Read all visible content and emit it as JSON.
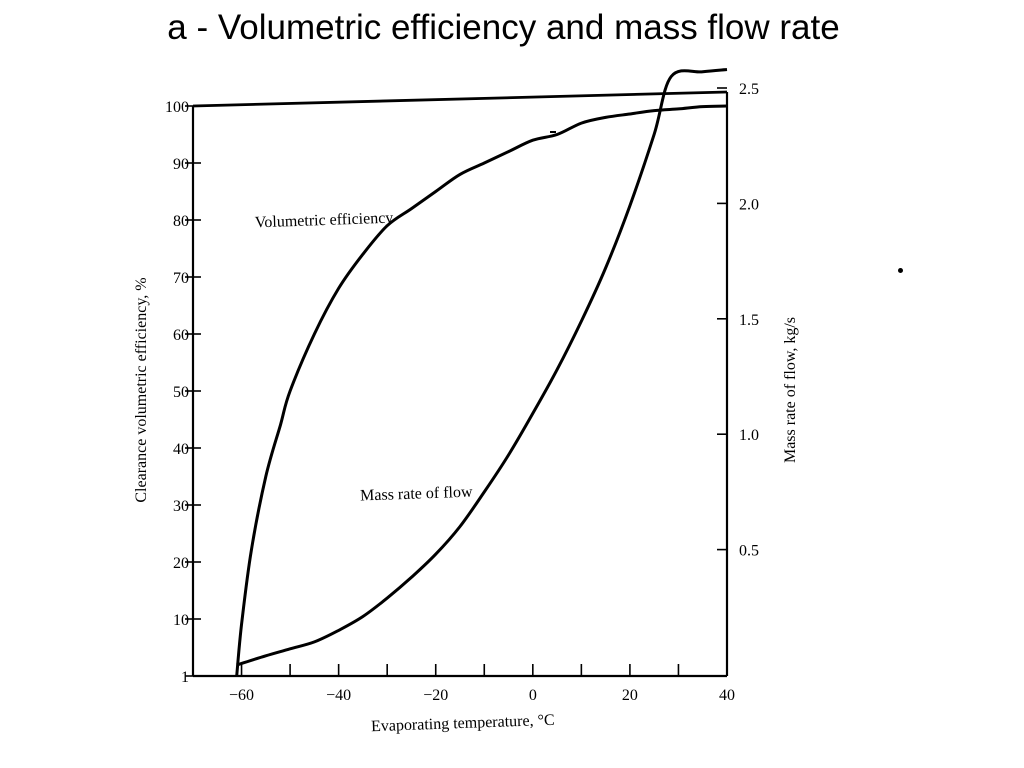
{
  "slide": {
    "title": "a - Volumetric efficiency and mass flow rate"
  },
  "chart_data": {
    "type": "line",
    "xlabel": "Evaporating temperature, °C",
    "ylabel": "Clearance volumetric efficiency, %",
    "y2label": "Mass rate of flow, kg/s",
    "xlim": [
      -70,
      40
    ],
    "ylim": [
      0,
      100
    ],
    "y2lim": [
      0,
      2.5
    ],
    "x_ticks": [
      -60,
      -40,
      -20,
      0,
      20,
      40
    ],
    "x_tick_labels": [
      "−60",
      "−40",
      "−20",
      "0",
      "20",
      "40"
    ],
    "y_ticks": [
      100,
      90,
      80,
      70,
      60,
      50,
      40,
      30,
      20,
      10,
      1
    ],
    "y_tick_labels": [
      "100",
      "90",
      "80",
      "70",
      "60",
      "50",
      "40",
      "30",
      "20",
      "10",
      "1"
    ],
    "y2_ticks": [
      2.5,
      2.0,
      1.5,
      1.0,
      0.5
    ],
    "y2_tick_labels": [
      "2.5",
      "2.0",
      "1.5",
      "1.0",
      "0.5"
    ],
    "grid": false,
    "series": [
      {
        "name": "Volumetric efficiency",
        "axis": "left",
        "x": [
          -61,
          -60,
          -58,
          -55,
          -52,
          -50,
          -45,
          -40,
          -35,
          -30,
          -25,
          -20,
          -15,
          -10,
          -5,
          0,
          5,
          10,
          15,
          20,
          25,
          30,
          35,
          40
        ],
        "y": [
          0,
          9,
          22,
          35,
          44,
          50,
          60,
          68,
          74,
          79,
          82,
          85,
          88,
          90,
          92,
          94,
          95,
          97,
          98,
          98.6,
          99.2,
          99.5,
          99.9,
          100
        ]
      },
      {
        "name": "Mass rate of flow",
        "axis": "right",
        "x": [
          -61,
          -55,
          -50,
          -45,
          -40,
          -35,
          -30,
          -25,
          -20,
          -15,
          -10,
          -5,
          0,
          5,
          10,
          15,
          20,
          25,
          28.5,
          35,
          40
        ],
        "y": [
          0,
          0.04,
          0.07,
          0.1,
          0.15,
          0.21,
          0.29,
          0.38,
          0.48,
          0.6,
          0.75,
          0.91,
          1.09,
          1.28,
          1.49,
          1.72,
          1.99,
          2.3,
          2.55,
          2.57,
          2.58
        ]
      }
    ],
    "annotations": [
      {
        "text": "Volumetric efficiency",
        "x": -43,
        "y": 80
      },
      {
        "text": "Mass rate of flow",
        "x": -24,
        "y": 32
      }
    ]
  }
}
